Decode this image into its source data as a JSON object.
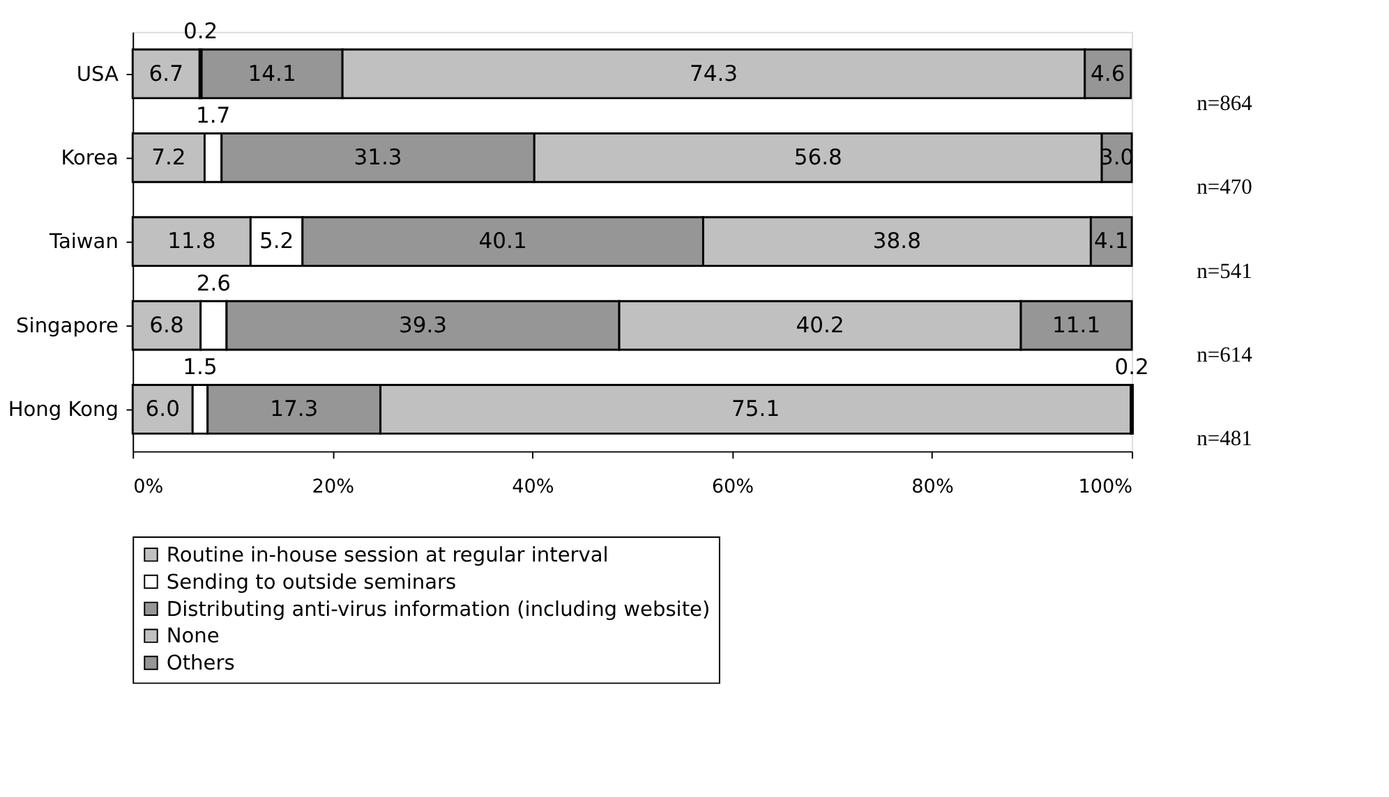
{
  "chart_data": {
    "type": "bar",
    "orientation": "horizontal",
    "stacked": true,
    "categories": [
      "USA",
      "Korea",
      "Taiwan",
      "Singapore",
      "Hong Kong"
    ],
    "series": [
      {
        "name": "Routine in-house session at regular interval",
        "color": "#c0c0c0",
        "values": [
          6.7,
          7.2,
          11.8,
          6.8,
          6.0
        ],
        "value_labels": [
          "6.7",
          "7.2",
          "11.8",
          "6.8",
          "6.0"
        ]
      },
      {
        "name": "Sending to outside seminars",
        "color": "#ffffff",
        "values": [
          0.2,
          1.7,
          5.2,
          2.6,
          1.5
        ],
        "value_labels": [
          "0.2",
          "1.7",
          "5.2",
          "2.6",
          "1.5"
        ]
      },
      {
        "name": "Distributing anti-virus information (including website)",
        "color": "#969696",
        "values": [
          14.1,
          31.3,
          40.1,
          39.3,
          17.3
        ],
        "value_labels": [
          "14.1",
          "31.3",
          "40.1",
          "39.3",
          "17.3"
        ]
      },
      {
        "name": "None",
        "color": "#c0c0c0",
        "values": [
          74.3,
          56.8,
          38.8,
          40.2,
          75.1
        ],
        "value_labels": [
          "74.3",
          "56.8",
          "38.8",
          "40.2",
          "75.1"
        ]
      },
      {
        "name": "Others",
        "color": "#969696",
        "values": [
          4.6,
          3.0,
          4.1,
          11.1,
          0.2
        ],
        "value_labels": [
          "4.6",
          "3.0",
          "4.1",
          "11.1",
          "0.2"
        ]
      }
    ],
    "xlim": [
      0,
      100
    ],
    "xticks": [
      {
        "value": 0,
        "label": "0%"
      },
      {
        "value": 20,
        "label": "20%"
      },
      {
        "value": 40,
        "label": "40%"
      },
      {
        "value": 60,
        "label": "60%"
      },
      {
        "value": 80,
        "label": "80%"
      },
      {
        "value": 100,
        "label": "100%"
      }
    ],
    "grid": false,
    "legend": "bottom",
    "annotations": [
      "n=864",
      "n=470",
      "n=541",
      "n=614",
      "n=481"
    ]
  }
}
